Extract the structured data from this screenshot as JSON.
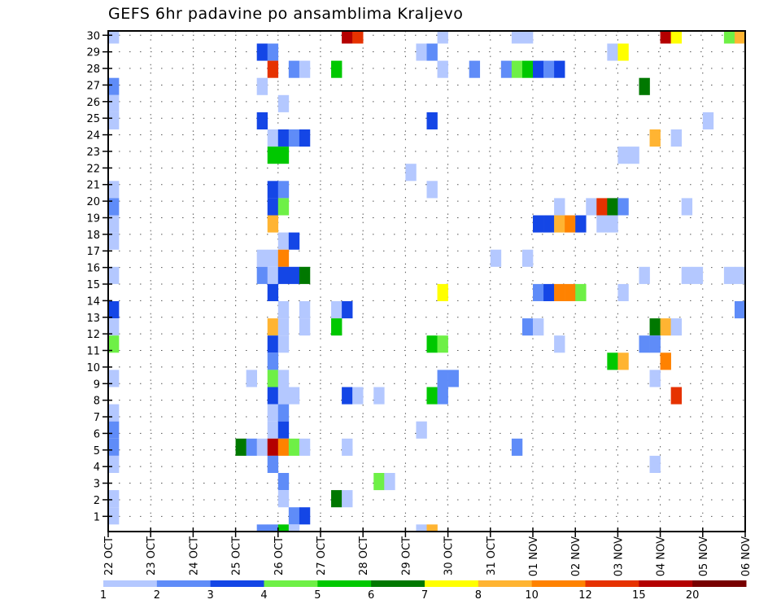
{
  "chart_data": {
    "type": "heatmap",
    "title": "GEFS 6hr padavine po ansamblima Kraljevo",
    "xlabel": "",
    "ylabel": "",
    "x_step_hours": 6,
    "x_steps": 60,
    "x_tick_labels": [
      "22 OCT",
      "23 OCT",
      "24 OCT",
      "25 OCT",
      "26 OCT",
      "27 OCT",
      "28 OCT",
      "29 OCT",
      "30 OCT",
      "31 OCT",
      "01 NOV",
      "02 NOV",
      "03 NOV",
      "04 NOV",
      "05 NOV",
      "06 NOV"
    ],
    "y_tick_labels": [
      "1",
      "2",
      "3",
      "4",
      "5",
      "6",
      "7",
      "8",
      "9",
      "10",
      "11",
      "12",
      "13",
      "14",
      "15",
      "16",
      "17",
      "18",
      "19",
      "20",
      "21",
      "22",
      "23",
      "24",
      "25",
      "26",
      "27",
      "28",
      "29",
      "30"
    ],
    "ylim": [
      0,
      30
    ],
    "grid": true,
    "colorbar": {
      "levels": [
        "1",
        "2",
        "3",
        "4",
        "5",
        "6",
        "7",
        "8",
        "10",
        "12",
        "15",
        "20"
      ],
      "colors": [
        "#b4c8ff",
        "#5f8cf8",
        "#1446e6",
        "#6ef046",
        "#00c800",
        "#007800",
        "#ffff00",
        "#ffb432",
        "#ff8200",
        "#e63200",
        "#b40000",
        "#780000"
      ],
      "placement": "bottom"
    },
    "cells_format": [
      "x_step",
      "member",
      "value_at_least"
    ],
    "cells": [
      [
        0,
        30,
        1
      ],
      [
        22,
        30,
        15
      ],
      [
        23,
        30,
        12
      ],
      [
        31,
        30,
        1
      ],
      [
        38,
        30,
        1
      ],
      [
        39,
        30,
        1
      ],
      [
        52,
        30,
        15
      ],
      [
        53,
        30,
        7
      ],
      [
        58,
        30,
        4
      ],
      [
        59,
        30,
        8
      ],
      [
        14,
        29,
        3
      ],
      [
        15,
        29,
        2
      ],
      [
        29,
        29,
        1
      ],
      [
        30,
        29,
        2
      ],
      [
        47,
        29,
        1
      ],
      [
        48,
        29,
        7
      ],
      [
        15,
        28,
        12
      ],
      [
        17,
        28,
        2
      ],
      [
        18,
        28,
        1
      ],
      [
        21,
        28,
        5
      ],
      [
        31,
        28,
        1
      ],
      [
        34,
        28,
        2
      ],
      [
        37,
        28,
        2
      ],
      [
        38,
        28,
        4
      ],
      [
        39,
        28,
        5
      ],
      [
        40,
        28,
        3
      ],
      [
        41,
        28,
        2
      ],
      [
        42,
        28,
        3
      ],
      [
        0,
        27,
        2
      ],
      [
        14,
        27,
        1
      ],
      [
        50,
        27,
        6
      ],
      [
        0,
        26,
        1
      ],
      [
        16,
        26,
        1
      ],
      [
        0,
        25,
        1
      ],
      [
        14,
        25,
        3
      ],
      [
        30,
        25,
        3
      ],
      [
        56,
        25,
        1
      ],
      [
        15,
        24,
        1
      ],
      [
        16,
        24,
        3
      ],
      [
        17,
        24,
        2
      ],
      [
        18,
        24,
        3
      ],
      [
        51,
        24,
        8
      ],
      [
        53,
        24,
        1
      ],
      [
        15,
        23,
        5
      ],
      [
        16,
        23,
        5
      ],
      [
        48,
        23,
        1
      ],
      [
        49,
        23,
        1
      ],
      [
        28,
        22,
        1
      ],
      [
        0,
        21,
        1
      ],
      [
        15,
        21,
        3
      ],
      [
        16,
        21,
        2
      ],
      [
        30,
        21,
        1
      ],
      [
        0,
        20,
        2
      ],
      [
        15,
        20,
        3
      ],
      [
        16,
        20,
        4
      ],
      [
        42,
        20,
        1
      ],
      [
        45,
        20,
        1
      ],
      [
        46,
        20,
        12
      ],
      [
        47,
        20,
        6
      ],
      [
        48,
        20,
        2
      ],
      [
        54,
        20,
        1
      ],
      [
        0,
        19,
        1
      ],
      [
        15,
        19,
        8
      ],
      [
        40,
        19,
        3
      ],
      [
        41,
        19,
        3
      ],
      [
        42,
        19,
        8
      ],
      [
        43,
        19,
        10
      ],
      [
        44,
        19,
        3
      ],
      [
        46,
        19,
        1
      ],
      [
        47,
        19,
        1
      ],
      [
        0,
        18,
        1
      ],
      [
        16,
        18,
        1
      ],
      [
        17,
        18,
        3
      ],
      [
        14,
        17,
        1
      ],
      [
        15,
        17,
        1
      ],
      [
        16,
        17,
        10
      ],
      [
        36,
        17,
        1
      ],
      [
        39,
        17,
        1
      ],
      [
        0,
        16,
        1
      ],
      [
        14,
        16,
        2
      ],
      [
        15,
        16,
        1
      ],
      [
        16,
        16,
        3
      ],
      [
        17,
        16,
        3
      ],
      [
        18,
        16,
        6
      ],
      [
        50,
        16,
        1
      ],
      [
        54,
        16,
        1
      ],
      [
        55,
        16,
        1
      ],
      [
        58,
        16,
        1
      ],
      [
        59,
        16,
        1
      ],
      [
        15,
        14,
        3
      ],
      [
        31,
        14,
        7
      ],
      [
        40,
        14,
        2
      ],
      [
        41,
        14,
        3
      ],
      [
        42,
        14,
        10
      ],
      [
        43,
        14,
        10
      ],
      [
        44,
        14,
        4
      ],
      [
        48,
        14,
        1
      ],
      [
        0,
        13,
        3
      ],
      [
        16,
        13,
        1
      ],
      [
        18,
        13,
        1
      ],
      [
        21,
        13,
        1
      ],
      [
        22,
        13,
        3
      ],
      [
        59,
        13,
        2
      ],
      [
        0,
        12,
        1
      ],
      [
        15,
        12,
        8
      ],
      [
        16,
        12,
        1
      ],
      [
        18,
        12,
        1
      ],
      [
        21,
        12,
        5
      ],
      [
        39,
        12,
        2
      ],
      [
        40,
        12,
        1
      ],
      [
        51,
        12,
        6
      ],
      [
        52,
        12,
        8
      ],
      [
        53,
        12,
        1
      ],
      [
        0,
        11,
        4
      ],
      [
        15,
        11,
        3
      ],
      [
        16,
        11,
        1
      ],
      [
        30,
        11,
        5
      ],
      [
        31,
        11,
        4
      ],
      [
        42,
        11,
        1
      ],
      [
        50,
        11,
        2
      ],
      [
        51,
        11,
        2
      ],
      [
        15,
        10,
        2
      ],
      [
        47,
        10,
        5
      ],
      [
        48,
        10,
        8
      ],
      [
        52,
        10,
        10
      ],
      [
        0,
        9,
        1
      ],
      [
        13,
        9,
        1
      ],
      [
        15,
        9,
        4
      ],
      [
        16,
        9,
        1
      ],
      [
        31,
        9,
        2
      ],
      [
        32,
        9,
        2
      ],
      [
        51,
        9,
        1
      ],
      [
        15,
        8,
        3
      ],
      [
        16,
        8,
        1
      ],
      [
        17,
        8,
        1
      ],
      [
        22,
        8,
        3
      ],
      [
        23,
        8,
        1
      ],
      [
        25,
        8,
        1
      ],
      [
        30,
        8,
        5
      ],
      [
        31,
        8,
        2
      ],
      [
        53,
        8,
        12
      ],
      [
        0,
        7,
        1
      ],
      [
        15,
        7,
        1
      ],
      [
        16,
        7,
        2
      ],
      [
        0,
        6,
        2
      ],
      [
        15,
        6,
        1
      ],
      [
        16,
        6,
        3
      ],
      [
        29,
        6,
        1
      ],
      [
        0,
        5,
        2
      ],
      [
        12,
        5,
        6
      ],
      [
        13,
        5,
        2
      ],
      [
        14,
        5,
        1
      ],
      [
        15,
        5,
        15
      ],
      [
        16,
        5,
        10
      ],
      [
        17,
        5,
        4
      ],
      [
        18,
        5,
        1
      ],
      [
        22,
        5,
        1
      ],
      [
        38,
        5,
        2
      ],
      [
        0,
        4,
        1
      ],
      [
        15,
        4,
        2
      ],
      [
        51,
        4,
        1
      ],
      [
        16,
        3,
        2
      ],
      [
        25,
        3,
        4
      ],
      [
        26,
        3,
        1
      ],
      [
        0,
        2,
        1
      ],
      [
        16,
        2,
        1
      ],
      [
        21,
        2,
        6
      ],
      [
        22,
        2,
        1
      ],
      [
        0,
        1,
        1
      ],
      [
        17,
        1,
        2
      ],
      [
        18,
        1,
        3
      ],
      [
        14,
        0,
        2
      ],
      [
        15,
        0,
        2
      ],
      [
        16,
        0,
        5
      ],
      [
        17,
        0,
        1
      ],
      [
        29,
        0,
        1
      ],
      [
        30,
        0,
        8
      ]
    ]
  }
}
